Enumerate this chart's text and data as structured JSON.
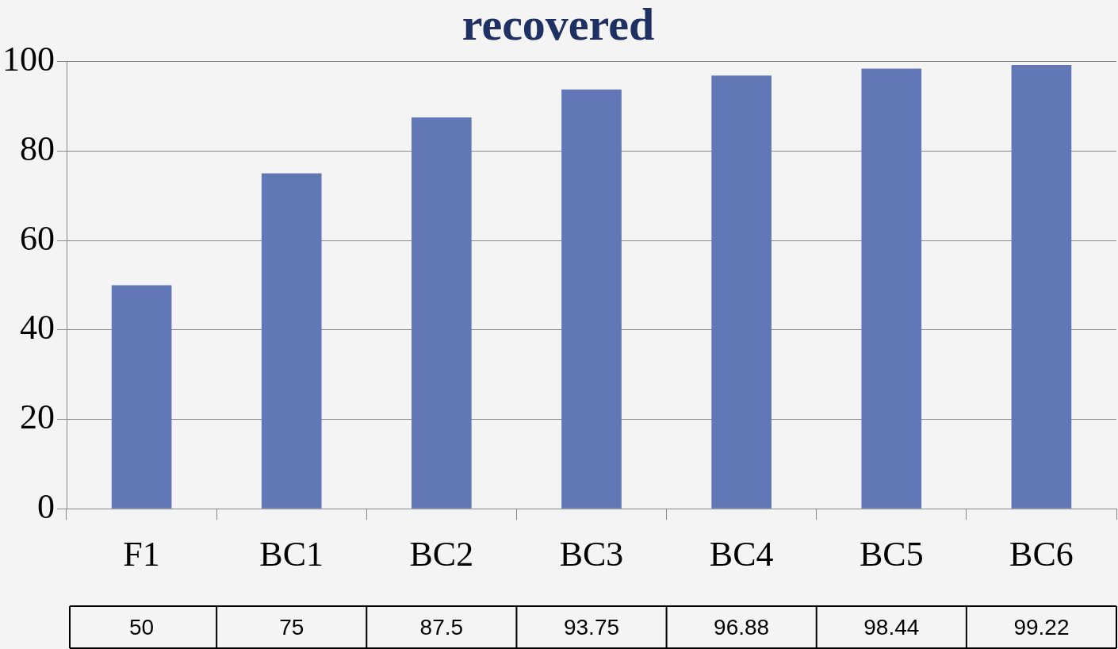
{
  "chart_data": {
    "type": "bar",
    "title": "recovered",
    "categories": [
      "F1",
      "BC1",
      "BC2",
      "BC3",
      "BC4",
      "BC5",
      "BC6"
    ],
    "values": [
      50,
      75,
      87.5,
      93.75,
      96.88,
      98.44,
      99.22
    ],
    "color": "#6277b5",
    "ylim": [
      0,
      100
    ],
    "yticks": [
      0,
      20,
      40,
      60,
      80,
      100
    ],
    "grid": "y",
    "legend": false,
    "data_labels": true
  }
}
